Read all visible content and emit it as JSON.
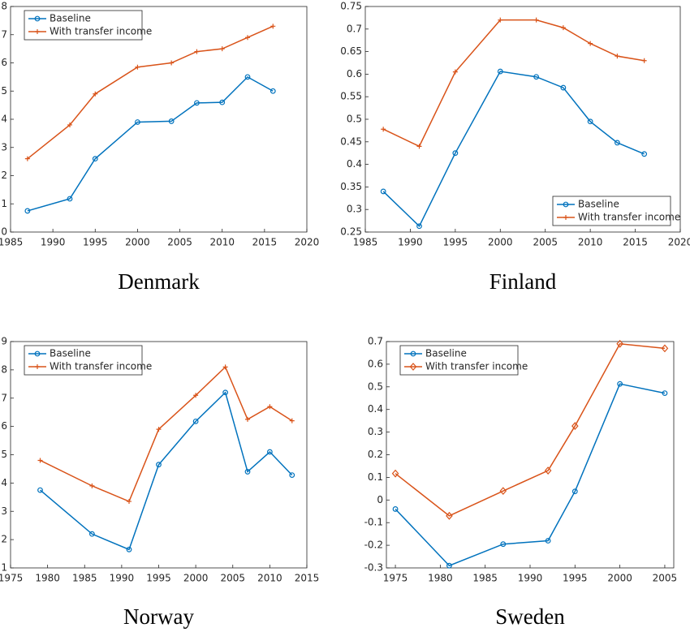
{
  "chart_data": [
    {
      "type": "line",
      "title": "Denmark",
      "legend": "top-left",
      "x": [
        1987,
        1992,
        1995,
        2000,
        2004,
        2007,
        2010,
        2013,
        2016
      ],
      "series": [
        {
          "name": "Baseline",
          "color": "#0072bd",
          "marker": "o",
          "values": [
            0.075,
            0.118,
            0.26,
            0.39,
            0.393,
            0.458,
            0.46,
            0.55,
            0.5
          ]
        },
        {
          "name": "With transfer income",
          "color": "#d95319",
          "marker": "+",
          "values": [
            0.26,
            0.38,
            0.49,
            0.585,
            0.6,
            0.64,
            0.65,
            0.69,
            0.73
          ]
        }
      ],
      "xlim": [
        1985,
        2020
      ],
      "xticks": [
        1985,
        1990,
        1995,
        2000,
        2005,
        2010,
        2015,
        2020
      ],
      "ylim": [
        0,
        0.8
      ],
      "yticks": [
        0,
        0.1,
        0.2,
        0.3,
        0.4,
        0.5,
        0.6,
        0.7,
        0.8
      ]
    },
    {
      "type": "line",
      "title": "Finland",
      "legend": "bottom-right",
      "x": [
        1987,
        1991,
        1995,
        2000,
        2004,
        2007,
        2010,
        2013,
        2016
      ],
      "series": [
        {
          "name": "Baseline",
          "color": "#0072bd",
          "marker": "o",
          "values": [
            0.34,
            0.263,
            0.425,
            0.606,
            0.594,
            0.57,
            0.495,
            0.448,
            0.423
          ]
        },
        {
          "name": "With transfer income",
          "color": "#d95319",
          "marker": "+",
          "values": [
            0.478,
            0.44,
            0.605,
            0.72,
            0.72,
            0.703,
            0.668,
            0.64,
            0.63
          ]
        }
      ],
      "xlim": [
        1985,
        2020
      ],
      "xticks": [
        1985,
        1990,
        1995,
        2000,
        2005,
        2010,
        2015,
        2020
      ],
      "ylim": [
        0.25,
        0.75
      ],
      "yticks": [
        0.25,
        0.3,
        0.35,
        0.4,
        0.45,
        0.5,
        0.55,
        0.6,
        0.65,
        0.7,
        0.75
      ]
    },
    {
      "type": "line",
      "title": "Norway",
      "legend": "top-left",
      "x": [
        1979,
        1986,
        1991,
        1995,
        2000,
        2004,
        2007,
        2010,
        2013
      ],
      "series": [
        {
          "name": "Baseline",
          "color": "#0072bd",
          "marker": "o",
          "values": [
            0.375,
            0.22,
            0.165,
            0.465,
            0.618,
            0.72,
            0.44,
            0.51,
            0.428
          ]
        },
        {
          "name": "With transfer income",
          "color": "#d95319",
          "marker": "+",
          "values": [
            0.48,
            0.39,
            0.335,
            0.59,
            0.71,
            0.81,
            0.625,
            0.67,
            0.62
          ]
        }
      ],
      "xlim": [
        1975,
        2015
      ],
      "xticks": [
        1975,
        1980,
        1985,
        1990,
        1995,
        2000,
        2005,
        2010,
        2015
      ],
      "ylim": [
        0.1,
        0.9
      ],
      "yticks": [
        0.1,
        0.2,
        0.3,
        0.4,
        0.5,
        0.6,
        0.7,
        0.8,
        0.9
      ]
    },
    {
      "type": "line",
      "title": "Sweden",
      "legend": "top-left",
      "x": [
        1975,
        1981,
        1987,
        1992,
        1995,
        2000,
        2005
      ],
      "series": [
        {
          "name": "Baseline",
          "color": "#0072bd",
          "marker": "o",
          "values": [
            -0.04,
            -0.29,
            -0.195,
            -0.18,
            0.038,
            0.513,
            0.472
          ]
        },
        {
          "name": "With transfer income",
          "color": "#d95319",
          "marker": "d",
          "values": [
            0.117,
            -0.07,
            0.04,
            0.13,
            0.327,
            0.69,
            0.67
          ]
        }
      ],
      "xlim": [
        1974,
        2006
      ],
      "xticks": [
        1975,
        1980,
        1985,
        1990,
        1995,
        2000,
        2005
      ],
      "ylim": [
        -0.3,
        0.7
      ],
      "yticks": [
        -0.3,
        -0.2,
        -0.1,
        0,
        0.1,
        0.2,
        0.3,
        0.4,
        0.5,
        0.6,
        0.7
      ]
    }
  ]
}
